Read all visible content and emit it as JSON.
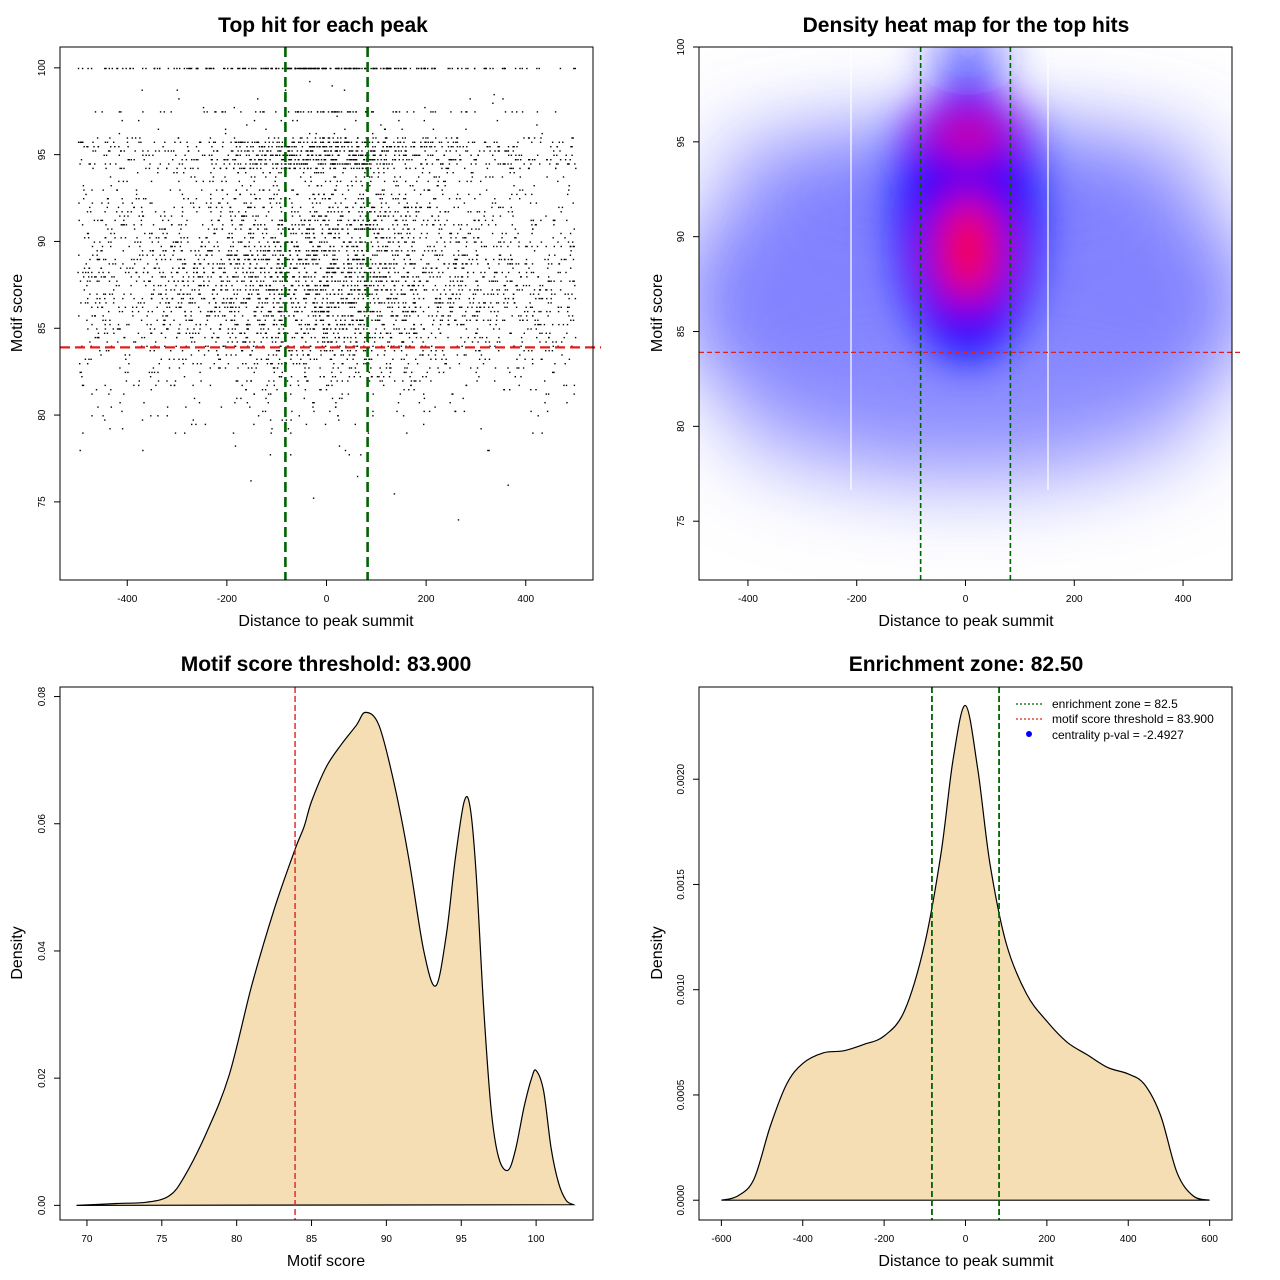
{
  "colors": {
    "zone_line": "#006400",
    "threshold_line": "#e0201e",
    "density_fill": "#f5deb3",
    "heat_low": "#ffffff",
    "heat_mid": "#0000ff",
    "heat_high": "#ff0000",
    "point": "#000000",
    "legend_point": "#0000ff"
  },
  "chart_data": [
    {
      "id": "scatter",
      "type": "scatter",
      "title": "Top hit for each peak",
      "xlabel": "Distance to peak summit",
      "ylabel": "Motif score",
      "xlim": [
        -535,
        535
      ],
      "ylim": [
        70.5,
        101.2
      ],
      "xticks": [
        -400,
        -200,
        0,
        200,
        400
      ],
      "yticks": [
        75,
        80,
        85,
        90,
        95,
        100
      ],
      "grid": false,
      "threshold_y": 83.9,
      "zone_x": [
        -82.5,
        82.5
      ],
      "point_x_range": [
        -500,
        500
      ],
      "point_count_approx": 5000
    },
    {
      "id": "heatmap",
      "type": "heatmap",
      "title": "Density heat map for the top hits",
      "xlabel": "Distance to peak summit",
      "ylabel": "Motif score",
      "xlim": [
        -490,
        490
      ],
      "ylim": [
        71.9,
        100.0
      ],
      "xticks": [
        -400,
        -200,
        0,
        200,
        400
      ],
      "yticks": [
        75,
        80,
        85,
        90,
        95,
        100
      ],
      "grid": false,
      "threshold_y": 83.9,
      "zone_x": [
        -82.5,
        82.5
      ],
      "hot_spots": [
        {
          "x": 5,
          "y": 95.3,
          "level": "high"
        },
        {
          "x": 5,
          "y": 88.8,
          "level": "high"
        }
      ]
    },
    {
      "id": "score_density",
      "type": "area",
      "title": "Motif score threshold: 83.900",
      "xlabel": "Motif score",
      "ylabel": "Density",
      "xlim": [
        68.2,
        103.8
      ],
      "ylim": [
        -0.0023,
        0.0815
      ],
      "xticks": [
        70,
        75,
        80,
        85,
        90,
        95,
        100
      ],
      "ytick_labels": [
        "0.00",
        "0.02",
        "0.04",
        "0.06",
        "0.08"
      ],
      "yticks": [
        0,
        0.02,
        0.04,
        0.06,
        0.08
      ],
      "grid": false,
      "threshold_x": 83.9,
      "x": [
        69.3,
        72,
        74,
        75.5,
        76.5,
        78,
        79.5,
        81,
        82.5,
        83.9,
        84.5,
        85,
        86,
        87,
        88,
        88.6,
        89.5,
        90.5,
        91.5,
        92.5,
        93.3,
        94,
        94.6,
        95.2,
        95.6,
        96,
        96.5,
        97,
        97.5,
        98.1,
        98.6,
        99.2,
        99.7,
        100,
        100.5,
        101,
        101.5,
        102,
        102.5
      ],
      "y": [
        0.0,
        0.0003,
        0.0005,
        0.0015,
        0.0045,
        0.0115,
        0.0205,
        0.0345,
        0.0465,
        0.056,
        0.0595,
        0.0635,
        0.069,
        0.0725,
        0.0755,
        0.0775,
        0.0755,
        0.0665,
        0.0545,
        0.04,
        0.0345,
        0.0425,
        0.0545,
        0.0635,
        0.0625,
        0.052,
        0.031,
        0.015,
        0.0075,
        0.0055,
        0.0085,
        0.0155,
        0.02,
        0.0212,
        0.018,
        0.009,
        0.0035,
        0.0008,
        0.0001
      ]
    },
    {
      "id": "distance_density",
      "type": "area",
      "title": "Enrichment zone: 82.50",
      "xlabel": "Distance to peak summit",
      "ylabel": "Density",
      "xlim": [
        -655,
        655
      ],
      "ylim": [
        -9.4e-05,
        0.002438
      ],
      "xticks": [
        -600,
        -400,
        -200,
        0,
        200,
        400,
        600
      ],
      "yticks": [
        0,
        0.0005,
        0.001,
        0.0015,
        0.002
      ],
      "ytick_labels": [
        "0.0000",
        "0.0005",
        "0.0010",
        "0.0015",
        "0.0020"
      ],
      "grid": false,
      "zone_x": [
        -82.5,
        82.5
      ],
      "x": [
        -600,
        -560,
        -520,
        -480,
        -440,
        -400,
        -350,
        -300,
        -250,
        -200,
        -150,
        -100,
        -60,
        -30,
        0,
        30,
        60,
        100,
        150,
        200,
        250,
        300,
        350,
        400,
        440,
        480,
        520,
        560,
        600
      ],
      "y": [
        0.0,
        2e-05,
        0.0001,
        0.00035,
        0.00055,
        0.00065,
        0.0007,
        0.00071,
        0.00074,
        0.00078,
        0.0009,
        0.00122,
        0.00165,
        0.0021,
        0.00235,
        0.00205,
        0.0016,
        0.00122,
        0.00098,
        0.00085,
        0.00075,
        0.00069,
        0.00063,
        0.0006,
        0.00055,
        0.0004,
        0.00013,
        2e-05,
        0.0
      ],
      "legend": {
        "placement": "top-right",
        "entries": [
          {
            "label": "enrichment zone = 82.5",
            "style": "dotted-line",
            "color": "#006400"
          },
          {
            "label": "motif score threshold = 83.900",
            "style": "dotted-line",
            "color": "#e0201e"
          },
          {
            "label": "centrality p-val = -2.4927",
            "style": "point",
            "color": "#0000ff"
          }
        ]
      }
    }
  ]
}
